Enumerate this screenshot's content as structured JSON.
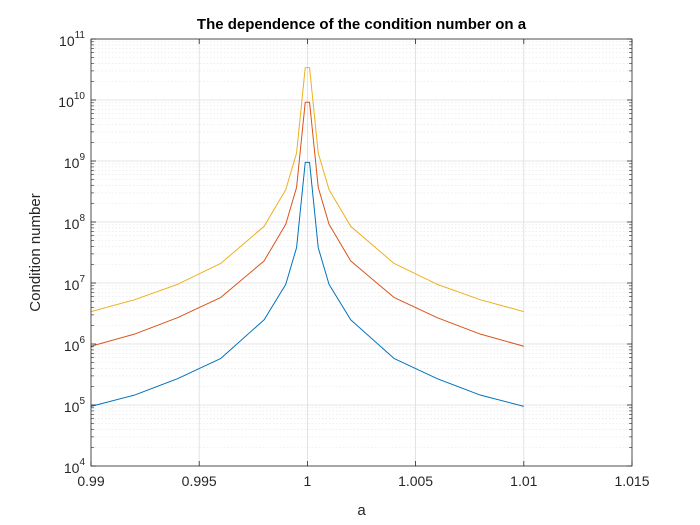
{
  "chart_data": {
    "type": "line",
    "title": "The dependence of the condition number on a",
    "xlabel": "a",
    "ylabel": "Condition number",
    "xlim": [
      0.99,
      1.015
    ],
    "ylim": [
      10000,
      100000000000
    ],
    "yscale": "log",
    "grid": true,
    "xticks": [
      {
        "value": 0.99,
        "label": "0.99"
      },
      {
        "value": 0.995,
        "label": "0.995"
      },
      {
        "value": 1.0,
        "label": "1"
      },
      {
        "value": 1.005,
        "label": "1.005"
      },
      {
        "value": 1.01,
        "label": "1.01"
      },
      {
        "value": 1.015,
        "label": "1.015"
      }
    ],
    "yticks": [
      {
        "value": 10000,
        "base": "10",
        "exp": "4"
      },
      {
        "value": 100000,
        "base": "10",
        "exp": "5"
      },
      {
        "value": 1000000,
        "base": "10",
        "exp": "6"
      },
      {
        "value": 10000000,
        "base": "10",
        "exp": "7"
      },
      {
        "value": 100000000,
        "base": "10",
        "exp": "8"
      },
      {
        "value": 1000000000,
        "base": "10",
        "exp": "9"
      },
      {
        "value": 10000000000,
        "base": "10",
        "exp": "10"
      },
      {
        "value": 100000000000,
        "base": "10",
        "exp": "11"
      }
    ],
    "series": [
      {
        "color": "#0072BD",
        "x": [
          0.99,
          0.992,
          0.994,
          0.996,
          0.998,
          0.999,
          0.9995,
          0.9999,
          1.0,
          1.0001,
          1.0005,
          1.001,
          1.002,
          1.004,
          1.006,
          1.008,
          1.01
        ],
        "y": [
          95000,
          145000,
          270000,
          580000,
          2500000,
          9500000,
          38000000,
          950000000,
          950000000,
          950000000,
          38000000,
          9500000,
          2500000,
          580000,
          270000,
          145000,
          95000
        ]
      },
      {
        "color": "#D95319",
        "x": [
          0.99,
          0.992,
          0.994,
          0.996,
          0.998,
          0.999,
          0.9995,
          0.9999,
          1.0,
          1.0001,
          1.0005,
          1.001,
          1.002,
          1.004,
          1.006,
          1.008,
          1.01
        ],
        "y": [
          920000,
          1450000,
          2700000,
          5800000,
          23000000,
          92000000,
          370000000,
          9200000000,
          9200000000,
          9200000000,
          370000000,
          92000000,
          23000000,
          5800000,
          2700000,
          1450000,
          920000
        ]
      },
      {
        "color": "#EDB120",
        "x": [
          0.99,
          0.992,
          0.994,
          0.996,
          0.998,
          0.999,
          0.9995,
          0.9999,
          1.0,
          1.0001,
          1.0005,
          1.001,
          1.002,
          1.004,
          1.006,
          1.008,
          1.01
        ],
        "y": [
          3400000,
          5300000,
          9500000,
          21000000,
          85000000,
          340000000,
          1350000000,
          34000000000,
          34000000000,
          34000000000,
          1350000000,
          340000000,
          85000000,
          21000000,
          9500000,
          5300000,
          3400000
        ]
      }
    ]
  }
}
